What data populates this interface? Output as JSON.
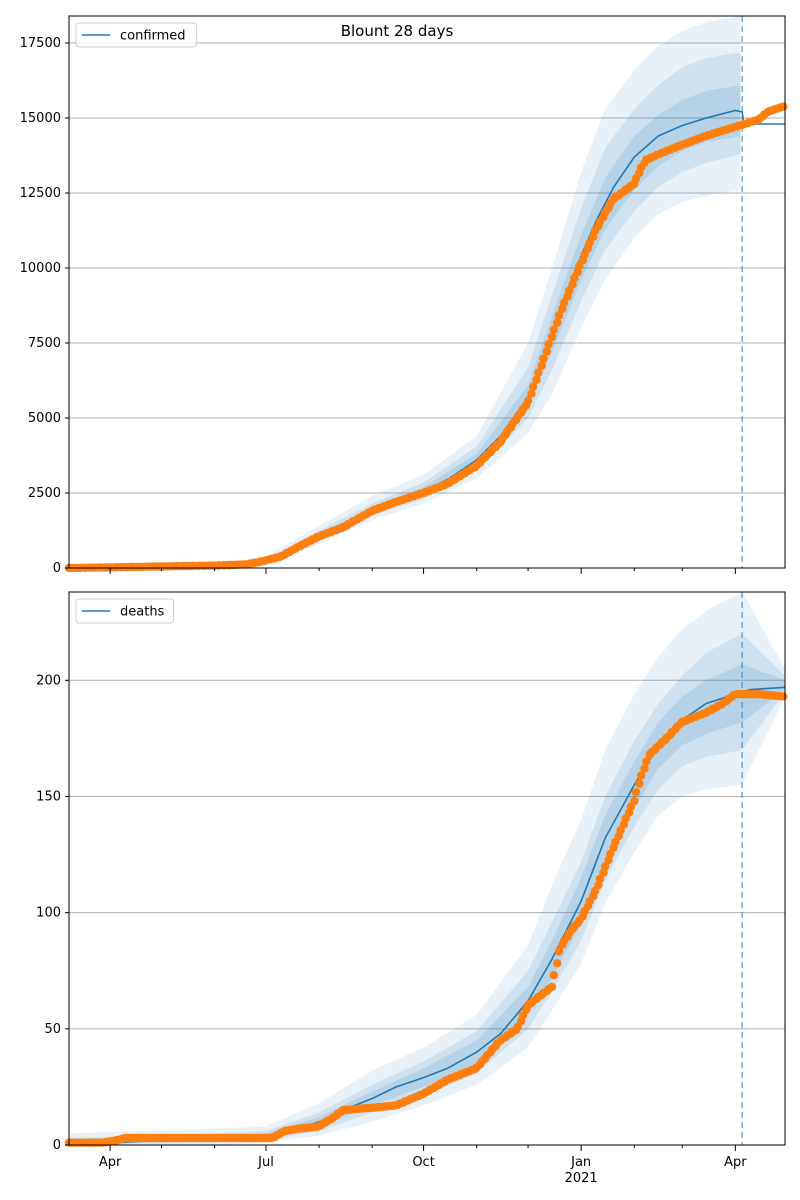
{
  "figure": {
    "title": "Blount 28 days"
  },
  "chart_data": [
    {
      "type": "line",
      "series_name": "confirmed",
      "legend_position": "upper-left",
      "grid": "horizontal",
      "ylim": [
        0,
        18400
      ],
      "yticks": [
        {
          "v": 0,
          "label": "0"
        },
        {
          "v": 2500,
          "label": "2500"
        },
        {
          "v": 5000,
          "label": "5000"
        },
        {
          "v": 7500,
          "label": "7500"
        },
        {
          "v": 10000,
          "label": "10000"
        },
        {
          "v": 12500,
          "label": "12500"
        },
        {
          "v": 15000,
          "label": "15000"
        },
        {
          "v": 17500,
          "label": "17500"
        }
      ],
      "forecast_date": "2021-04-05",
      "model_line": [
        [
          "2020-03-08",
          0
        ],
        [
          "2020-06-01",
          50
        ],
        [
          "2020-06-20",
          110
        ],
        [
          "2020-07-01",
          220
        ],
        [
          "2020-07-15",
          550
        ],
        [
          "2020-08-01",
          1050
        ],
        [
          "2020-08-15",
          1450
        ],
        [
          "2020-09-01",
          1900
        ],
        [
          "2020-09-15",
          2250
        ],
        [
          "2020-10-01",
          2550
        ],
        [
          "2020-10-15",
          2950
        ],
        [
          "2020-11-01",
          3600
        ],
        [
          "2020-11-15",
          4400
        ],
        [
          "2020-12-01",
          5700
        ],
        [
          "2020-12-10",
          7000
        ],
        [
          "2020-12-20",
          8700
        ],
        [
          "2021-01-01",
          10400
        ],
        [
          "2021-01-10",
          11600
        ],
        [
          "2021-01-20",
          12700
        ],
        [
          "2021-02-01",
          13700
        ],
        [
          "2021-02-15",
          14400
        ],
        [
          "2021-03-01",
          14750
        ],
        [
          "2021-03-15",
          15000
        ],
        [
          "2021-04-01",
          15250
        ],
        [
          "2021-04-05",
          15200
        ],
        [
          "2021-04-06",
          14800
        ],
        [
          "2021-04-30",
          14800
        ]
      ],
      "bands": [
        {
          "opacity": 0.1,
          "points": [
            [
              "2020-03-08",
              0,
              80
            ],
            [
              "2020-06-01",
              20,
              120
            ],
            [
              "2020-07-01",
              120,
              380
            ],
            [
              "2020-08-01",
              800,
              1400
            ],
            [
              "2020-09-01",
              1600,
              2400
            ],
            [
              "2020-10-01",
              2150,
              3100
            ],
            [
              "2020-11-01",
              3000,
              4400
            ],
            [
              "2020-12-01",
              4500,
              7500
            ],
            [
              "2020-12-15",
              5800,
              10000
            ],
            [
              "2021-01-01",
              8000,
              13200
            ],
            [
              "2021-01-15",
              9600,
              15300
            ],
            [
              "2021-02-01",
              11000,
              16600
            ],
            [
              "2021-02-15",
              11800,
              17400
            ],
            [
              "2021-03-01",
              12200,
              17900
            ],
            [
              "2021-03-15",
              12400,
              18200
            ],
            [
              "2021-04-05",
              12600,
              18400
            ]
          ]
        },
        {
          "opacity": 0.12,
          "points": [
            [
              "2020-03-08",
              0,
              60
            ],
            [
              "2020-06-01",
              30,
              90
            ],
            [
              "2020-07-01",
              160,
              300
            ],
            [
              "2020-08-01",
              900,
              1250
            ],
            [
              "2020-09-01",
              1750,
              2150
            ],
            [
              "2020-10-01",
              2300,
              2850
            ],
            [
              "2020-11-01",
              3250,
              4050
            ],
            [
              "2020-12-01",
              5000,
              6700
            ],
            [
              "2020-12-15",
              6600,
              9100
            ],
            [
              "2021-01-01",
              8900,
              12000
            ],
            [
              "2021-01-15",
              10600,
              14000
            ],
            [
              "2021-02-01",
              11900,
              15300
            ],
            [
              "2021-02-15",
              12700,
              16100
            ],
            [
              "2021-03-01",
              13200,
              16700
            ],
            [
              "2021-03-15",
              13500,
              17000
            ],
            [
              "2021-04-05",
              13800,
              17200
            ]
          ]
        },
        {
          "opacity": 0.14,
          "points": [
            [
              "2020-03-08",
              0,
              50
            ],
            [
              "2020-06-01",
              40,
              70
            ],
            [
              "2020-07-01",
              190,
              260
            ],
            [
              "2020-08-01",
              980,
              1150
            ],
            [
              "2020-09-01",
              1850,
              2000
            ],
            [
              "2020-10-01",
              2450,
              2700
            ],
            [
              "2020-11-01",
              3450,
              3800
            ],
            [
              "2020-12-01",
              5400,
              6100
            ],
            [
              "2020-12-15",
              7200,
              8400
            ],
            [
              "2021-01-01",
              9600,
              11100
            ],
            [
              "2021-01-15",
              11300,
              13000
            ],
            [
              "2021-02-01",
              12600,
              14400
            ],
            [
              "2021-02-15",
              13400,
              15100
            ],
            [
              "2021-03-01",
              13900,
              15600
            ],
            [
              "2021-03-15",
              14200,
              15900
            ],
            [
              "2021-04-05",
              14400,
              16100
            ]
          ]
        }
      ],
      "observed": [
        [
          "2020-03-08",
          0
        ],
        [
          "2020-04-01",
          20
        ],
        [
          "2020-05-01",
          50
        ],
        [
          "2020-06-01",
          80
        ],
        [
          "2020-06-20",
          120
        ],
        [
          "2020-07-01",
          250
        ],
        [
          "2020-07-10",
          380
        ],
        [
          "2020-07-20",
          700
        ],
        [
          "2020-08-01",
          1050
        ],
        [
          "2020-08-15",
          1350
        ],
        [
          "2020-09-01",
          1900
        ],
        [
          "2020-09-15",
          2200
        ],
        [
          "2020-10-01",
          2500
        ],
        [
          "2020-10-15",
          2800
        ],
        [
          "2020-11-01",
          3400
        ],
        [
          "2020-11-15",
          4200
        ],
        [
          "2020-12-01",
          5500
        ],
        [
          "2020-12-10",
          6900
        ],
        [
          "2020-12-20",
          8500
        ],
        [
          "2020-12-31",
          10000
        ],
        [
          "2021-01-10",
          11300
        ],
        [
          "2021-01-20",
          12300
        ],
        [
          "2021-02-01",
          12800
        ],
        [
          "2021-02-05",
          13300
        ],
        [
          "2021-02-08",
          13600
        ],
        [
          "2021-02-20",
          13900
        ],
        [
          "2021-03-01",
          14100
        ],
        [
          "2021-03-15",
          14400
        ],
        [
          "2021-04-01",
          14700
        ],
        [
          "2021-04-15",
          14950
        ],
        [
          "2021-04-20",
          15200
        ],
        [
          "2021-04-30",
          15400
        ]
      ]
    },
    {
      "type": "line",
      "series_name": "deaths",
      "legend_position": "upper-left",
      "grid": "horizontal",
      "ylim": [
        0,
        238
      ],
      "yticks": [
        {
          "v": 0,
          "label": "0"
        },
        {
          "v": 50,
          "label": "50"
        },
        {
          "v": 100,
          "label": "100"
        },
        {
          "v": 150,
          "label": "150"
        },
        {
          "v": 200,
          "label": "200"
        }
      ],
      "forecast_date": "2021-04-05",
      "model_line": [
        [
          "2020-03-08",
          0
        ],
        [
          "2020-04-01",
          1
        ],
        [
          "2020-05-01",
          2
        ],
        [
          "2020-06-01",
          3
        ],
        [
          "2020-07-01",
          4
        ],
        [
          "2020-07-15",
          6
        ],
        [
          "2020-08-01",
          10
        ],
        [
          "2020-08-15",
          15
        ],
        [
          "2020-09-01",
          20
        ],
        [
          "2020-09-15",
          25
        ],
        [
          "2020-10-01",
          29
        ],
        [
          "2020-10-15",
          33
        ],
        [
          "2020-11-01",
          40
        ],
        [
          "2020-11-15",
          48
        ],
        [
          "2020-12-01",
          62
        ],
        [
          "2020-12-15",
          80
        ],
        [
          "2021-01-01",
          105
        ],
        [
          "2021-01-15",
          132
        ],
        [
          "2021-02-01",
          155
        ],
        [
          "2021-02-15",
          172
        ],
        [
          "2021-03-01",
          183
        ],
        [
          "2021-03-15",
          190
        ],
        [
          "2021-04-05",
          195
        ],
        [
          "2021-04-10",
          196
        ],
        [
          "2021-04-30",
          197
        ]
      ],
      "bands": [
        {
          "opacity": 0.1,
          "points": [
            [
              "2020-03-08",
              0,
              5
            ],
            [
              "2020-06-01",
              0,
              7
            ],
            [
              "2020-07-01",
              1,
              8
            ],
            [
              "2020-08-01",
              4,
              18
            ],
            [
              "2020-09-01",
              10,
              32
            ],
            [
              "2020-10-01",
              17,
              42
            ],
            [
              "2020-11-01",
              26,
              56
            ],
            [
              "2020-12-01",
              42,
              86
            ],
            [
              "2020-12-15",
              58,
              112
            ],
            [
              "2021-01-01",
              78,
              140
            ],
            [
              "2021-01-15",
              104,
              170
            ],
            [
              "2021-02-01",
              126,
              194
            ],
            [
              "2021-02-15",
              142,
              210
            ],
            [
              "2021-03-01",
              150,
              222
            ],
            [
              "2021-03-15",
              153,
              230
            ],
            [
              "2021-04-05",
              155,
              238
            ],
            [
              "2021-04-30",
              193,
              205
            ]
          ]
        },
        {
          "opacity": 0.12,
          "points": [
            [
              "2020-03-08",
              0,
              3
            ],
            [
              "2020-06-01",
              1,
              5
            ],
            [
              "2020-07-01",
              2,
              6
            ],
            [
              "2020-08-01",
              6,
              14
            ],
            [
              "2020-09-01",
              14,
              26
            ],
            [
              "2020-10-01",
              21,
              36
            ],
            [
              "2020-11-01",
              31,
              49
            ],
            [
              "2020-12-01",
              50,
              75
            ],
            [
              "2020-12-15",
              66,
              96
            ],
            [
              "2021-01-01",
              88,
              122
            ],
            [
              "2021-01-15",
              114,
              150
            ],
            [
              "2021-02-01",
              137,
              174
            ],
            [
              "2021-02-15",
              153,
              190
            ],
            [
              "2021-03-01",
              163,
              202
            ],
            [
              "2021-03-15",
              167,
              212
            ],
            [
              "2021-04-05",
              170,
              220
            ],
            [
              "2021-04-30",
              195,
              202
            ]
          ]
        },
        {
          "opacity": 0.14,
          "points": [
            [
              "2020-03-08",
              0,
              2
            ],
            [
              "2020-06-01",
              2,
              4
            ],
            [
              "2020-07-01",
              3,
              5
            ],
            [
              "2020-08-01",
              8,
              12
            ],
            [
              "2020-09-01",
              17,
              23
            ],
            [
              "2020-10-01",
              25,
              33
            ],
            [
              "2020-11-01",
              35,
              45
            ],
            [
              "2020-12-01",
              56,
              68
            ],
            [
              "2020-12-15",
              72,
              88
            ],
            [
              "2021-01-01",
              95,
              115
            ],
            [
              "2021-01-15",
              122,
              142
            ],
            [
              "2021-02-01",
              145,
              165
            ],
            [
              "2021-02-15",
              162,
              182
            ],
            [
              "2021-03-01",
              172,
              193
            ],
            [
              "2021-03-15",
              177,
              200
            ],
            [
              "2021-04-05",
              182,
              207
            ],
            [
              "2021-04-30",
              196,
              200
            ]
          ]
        }
      ],
      "observed": [
        [
          "2020-03-08",
          1
        ],
        [
          "2020-03-28",
          1
        ],
        [
          "2020-04-05",
          2
        ],
        [
          "2020-04-10",
          3
        ],
        [
          "2020-07-05",
          3
        ],
        [
          "2020-07-12",
          6
        ],
        [
          "2020-07-20",
          7
        ],
        [
          "2020-08-01",
          8
        ],
        [
          "2020-08-10",
          12
        ],
        [
          "2020-08-15",
          15
        ],
        [
          "2020-09-01",
          16
        ],
        [
          "2020-09-15",
          17
        ],
        [
          "2020-10-01",
          22
        ],
        [
          "2020-10-15",
          28
        ],
        [
          "2020-11-01",
          33
        ],
        [
          "2020-11-15",
          45
        ],
        [
          "2020-11-25",
          50
        ],
        [
          "2020-12-01",
          60
        ],
        [
          "2020-12-15",
          68
        ],
        [
          "2020-12-20",
          85
        ],
        [
          "2020-12-27",
          93
        ],
        [
          "2021-01-01",
          97
        ],
        [
          "2021-01-10",
          110
        ],
        [
          "2021-01-20",
          128
        ],
        [
          "2021-02-01",
          148
        ],
        [
          "2021-02-05",
          158
        ],
        [
          "2021-02-10",
          168
        ],
        [
          "2021-02-20",
          175
        ],
        [
          "2021-03-01",
          182
        ],
        [
          "2021-03-15",
          186
        ],
        [
          "2021-03-25",
          190
        ],
        [
          "2021-04-01",
          194
        ],
        [
          "2021-04-15",
          194
        ],
        [
          "2021-04-30",
          193
        ]
      ]
    }
  ],
  "x_axis": {
    "xlim": [
      "2020-03-08",
      "2021-04-30"
    ],
    "labels": [
      {
        "date": "2020-04-01",
        "label": "Apr"
      },
      {
        "date": "2020-07-01",
        "label": "Jul"
      },
      {
        "date": "2020-10-01",
        "label": "Oct"
      },
      {
        "date": "2021-01-01",
        "label": "Jan",
        "sublabel": "2021"
      },
      {
        "date": "2021-04-01",
        "label": "Apr"
      }
    ],
    "minor_ticks": [
      "2020-05-01",
      "2020-06-01",
      "2020-08-01",
      "2020-09-01",
      "2020-11-01",
      "2020-12-01",
      "2021-02-01",
      "2021-03-01"
    ]
  },
  "colors": {
    "line": "#1f77b4",
    "observed": "#ff7f0e",
    "band": "#1f77b4",
    "grid": "#b0b0b0"
  }
}
